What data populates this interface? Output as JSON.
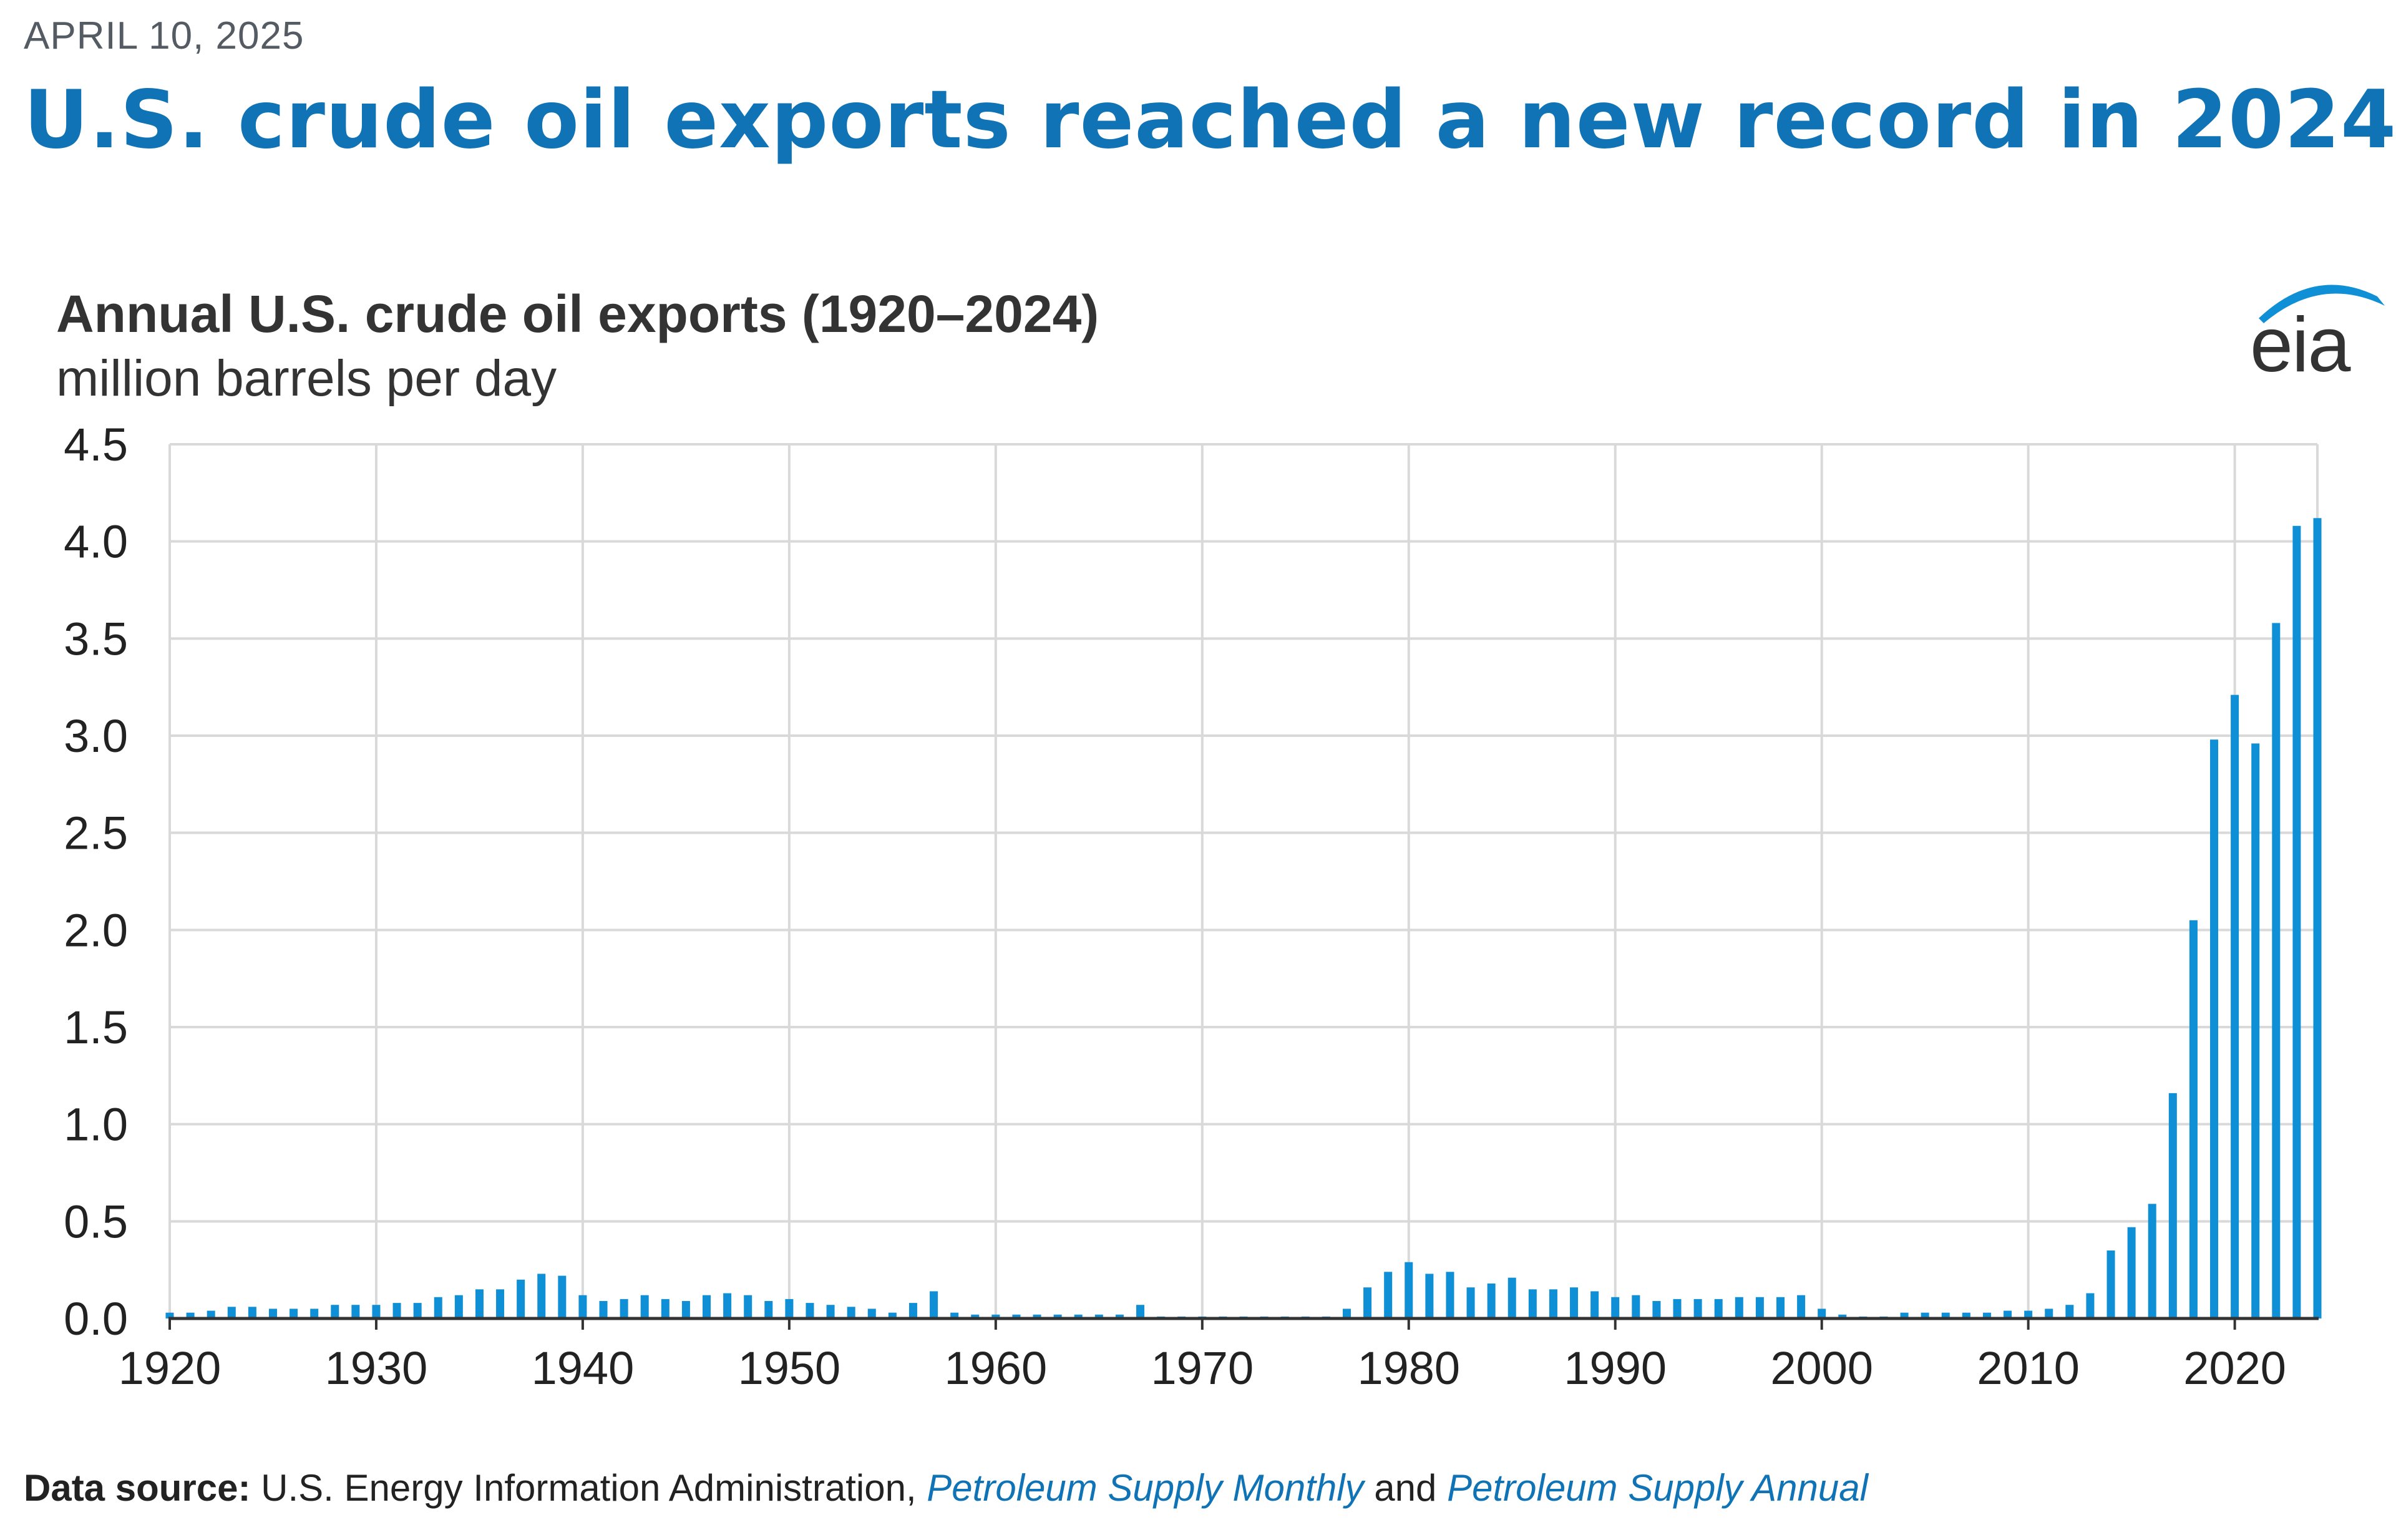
{
  "header": {
    "date": "APRIL 10, 2025",
    "headline": "U.S. crude oil exports reached a new record in 2024"
  },
  "logo": {
    "text": "eia"
  },
  "colors": {
    "bar": "#0f8fd6",
    "grid": "#d9d9d9",
    "axis": "#333333",
    "headline": "#0f73b5"
  },
  "source": {
    "label": "Data source:",
    "text": " U.S. Energy Information Administration, ",
    "link1": "Petroleum Supply Monthly",
    "and": " and ",
    "link2": "Petroleum Supply Annual"
  },
  "chart_data": {
    "type": "bar",
    "title": "Annual U.S. crude oil exports (1920–2024)",
    "ylabel": "million barrels per day",
    "xlabel": "",
    "ylim": [
      0,
      4.5
    ],
    "xlim": [
      1920,
      2024
    ],
    "grid": true,
    "yticks": [
      "0.0",
      "0.5",
      "1.0",
      "1.5",
      "2.0",
      "2.5",
      "3.0",
      "3.5",
      "4.0",
      "4.5"
    ],
    "xticks": [
      "1920",
      "1930",
      "1940",
      "1950",
      "1960",
      "1970",
      "1980",
      "1990",
      "2000",
      "2010",
      "2020"
    ],
    "x": [
      1920,
      1921,
      1922,
      1923,
      1924,
      1925,
      1926,
      1927,
      1928,
      1929,
      1930,
      1931,
      1932,
      1933,
      1934,
      1935,
      1936,
      1937,
      1938,
      1939,
      1940,
      1941,
      1942,
      1943,
      1944,
      1945,
      1946,
      1947,
      1948,
      1949,
      1950,
      1951,
      1952,
      1953,
      1954,
      1955,
      1956,
      1957,
      1958,
      1959,
      1960,
      1961,
      1962,
      1963,
      1964,
      1965,
      1966,
      1967,
      1968,
      1969,
      1970,
      1971,
      1972,
      1973,
      1974,
      1975,
      1976,
      1977,
      1978,
      1979,
      1980,
      1981,
      1982,
      1983,
      1984,
      1985,
      1986,
      1987,
      1988,
      1989,
      1990,
      1991,
      1992,
      1993,
      1994,
      1995,
      1996,
      1997,
      1998,
      1999,
      2000,
      2001,
      2002,
      2003,
      2004,
      2005,
      2006,
      2007,
      2008,
      2009,
      2010,
      2011,
      2012,
      2013,
      2014,
      2015,
      2016,
      2017,
      2018,
      2019,
      2020,
      2021,
      2022,
      2023,
      2024
    ],
    "values": [
      0.03,
      0.03,
      0.04,
      0.06,
      0.06,
      0.05,
      0.05,
      0.05,
      0.07,
      0.07,
      0.07,
      0.08,
      0.08,
      0.11,
      0.12,
      0.15,
      0.15,
      0.2,
      0.23,
      0.22,
      0.12,
      0.09,
      0.1,
      0.12,
      0.1,
      0.09,
      0.12,
      0.13,
      0.12,
      0.09,
      0.1,
      0.08,
      0.07,
      0.06,
      0.05,
      0.03,
      0.08,
      0.14,
      0.03,
      0.02,
      0.02,
      0.02,
      0.02,
      0.02,
      0.02,
      0.02,
      0.02,
      0.07,
      0.01,
      0.01,
      0.01,
      0.01,
      0.01,
      0.01,
      0.01,
      0.01,
      0.01,
      0.05,
      0.16,
      0.24,
      0.29,
      0.23,
      0.24,
      0.16,
      0.18,
      0.21,
      0.15,
      0.15,
      0.16,
      0.14,
      0.11,
      0.12,
      0.09,
      0.1,
      0.1,
      0.1,
      0.11,
      0.11,
      0.11,
      0.12,
      0.05,
      0.02,
      0.01,
      0.01,
      0.03,
      0.03,
      0.03,
      0.03,
      0.03,
      0.04,
      0.04,
      0.05,
      0.07,
      0.13,
      0.35,
      0.47,
      0.59,
      1.16,
      2.05,
      2.98,
      3.21,
      2.96,
      3.58,
      4.08,
      4.12
    ]
  }
}
